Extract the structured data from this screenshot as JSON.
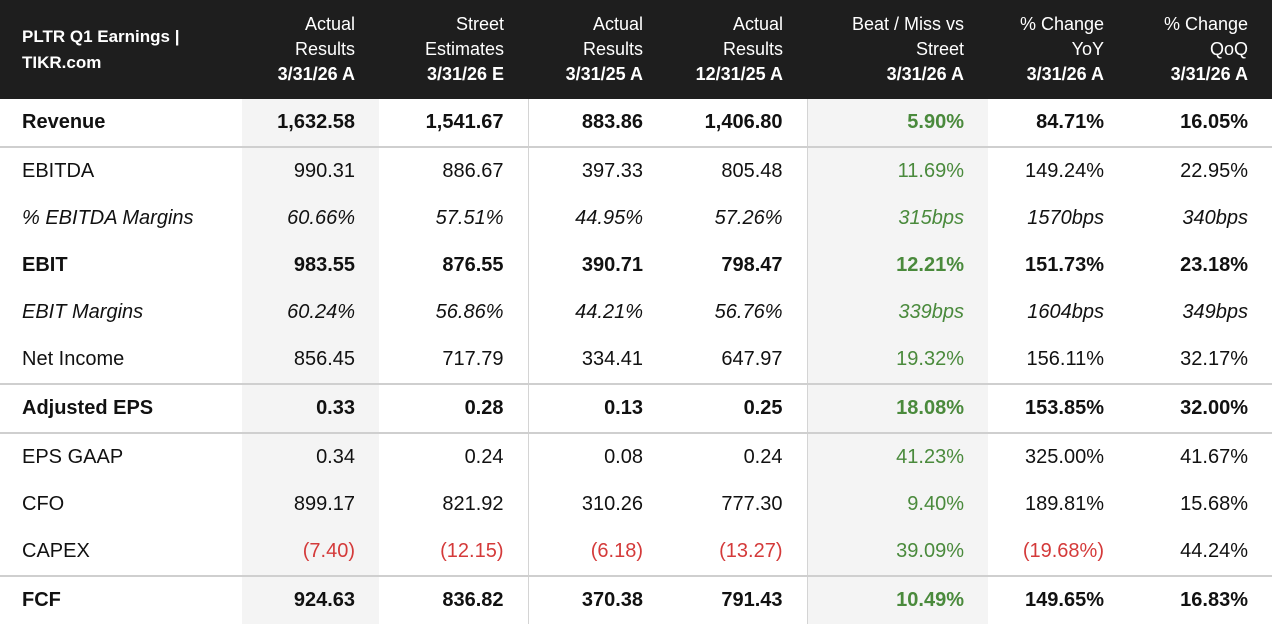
{
  "header": {
    "title_line1": "PLTR Q1 Earnings |",
    "title_line2": "TIKR.com",
    "columns": [
      {
        "line1": "Actual",
        "line2": "Results",
        "date": "3/31/26 A"
      },
      {
        "line1": "Street",
        "line2": "Estimates",
        "date": "3/31/26 E"
      },
      {
        "line1": "Actual",
        "line2": "Results",
        "date": "3/31/25 A"
      },
      {
        "line1": "Actual",
        "line2": "Results",
        "date": "12/31/25 A"
      },
      {
        "line1": "Beat / Miss vs",
        "line2": "Street",
        "date": "3/31/26 A"
      },
      {
        "line1": "% Change",
        "line2": "YoY",
        "date": "3/31/26 A"
      },
      {
        "line1": "% Change",
        "line2": "QoQ",
        "date": "3/31/26 A"
      }
    ]
  },
  "rows": [
    {
      "label": "Revenue",
      "style": "bold",
      "values": [
        "1,632.58",
        "1,541.67",
        "883.86",
        "1,406.80",
        "5.90%",
        "84.71%",
        "16.05%"
      ]
    },
    {
      "label": "EBITDA",
      "style": "normal",
      "values": [
        "990.31",
        "886.67",
        "397.33",
        "805.48",
        "11.69%",
        "149.24%",
        "22.95%"
      ]
    },
    {
      "label": "% EBITDA Margins",
      "style": "italic",
      "values": [
        "60.66%",
        "57.51%",
        "44.95%",
        "57.26%",
        "315bps",
        "1570bps",
        "340bps"
      ]
    },
    {
      "label": "EBIT",
      "style": "bold",
      "values": [
        "983.55",
        "876.55",
        "390.71",
        "798.47",
        "12.21%",
        "151.73%",
        "23.18%"
      ]
    },
    {
      "label": "EBIT Margins",
      "style": "italic",
      "values": [
        "60.24%",
        "56.86%",
        "44.21%",
        "56.76%",
        "339bps",
        "1604bps",
        "349bps"
      ]
    },
    {
      "label": "Net Income",
      "style": "normal",
      "values": [
        "856.45",
        "717.79",
        "334.41",
        "647.97",
        "19.32%",
        "156.11%",
        "32.17%"
      ]
    },
    {
      "label": "Adjusted EPS",
      "style": "bold",
      "values": [
        "0.33",
        "0.28",
        "0.13",
        "0.25",
        "18.08%",
        "153.85%",
        "32.00%"
      ]
    },
    {
      "label": "EPS GAAP",
      "style": "normal",
      "values": [
        "0.34",
        "0.24",
        "0.08",
        "0.24",
        "41.23%",
        "325.00%",
        "41.67%"
      ]
    },
    {
      "label": "CFO",
      "style": "normal",
      "values": [
        "899.17",
        "821.92",
        "310.26",
        "777.30",
        "9.40%",
        "189.81%",
        "15.68%"
      ]
    },
    {
      "label": "CAPEX",
      "style": "normal",
      "values": [
        "(7.40)",
        "(12.15)",
        "(6.18)",
        "(13.27)",
        "39.09%",
        "(19.68%)",
        "44.24%"
      ]
    },
    {
      "label": "FCF",
      "style": "bold",
      "values": [
        "924.63",
        "836.82",
        "370.38",
        "791.43",
        "10.49%",
        "149.65%",
        "16.83%"
      ]
    }
  ],
  "colors": {
    "header_bg": "#1e1e1e",
    "positive": "#4a8a3c",
    "negative": "#d43a3a",
    "shaded_column": "#f4f4f4"
  }
}
